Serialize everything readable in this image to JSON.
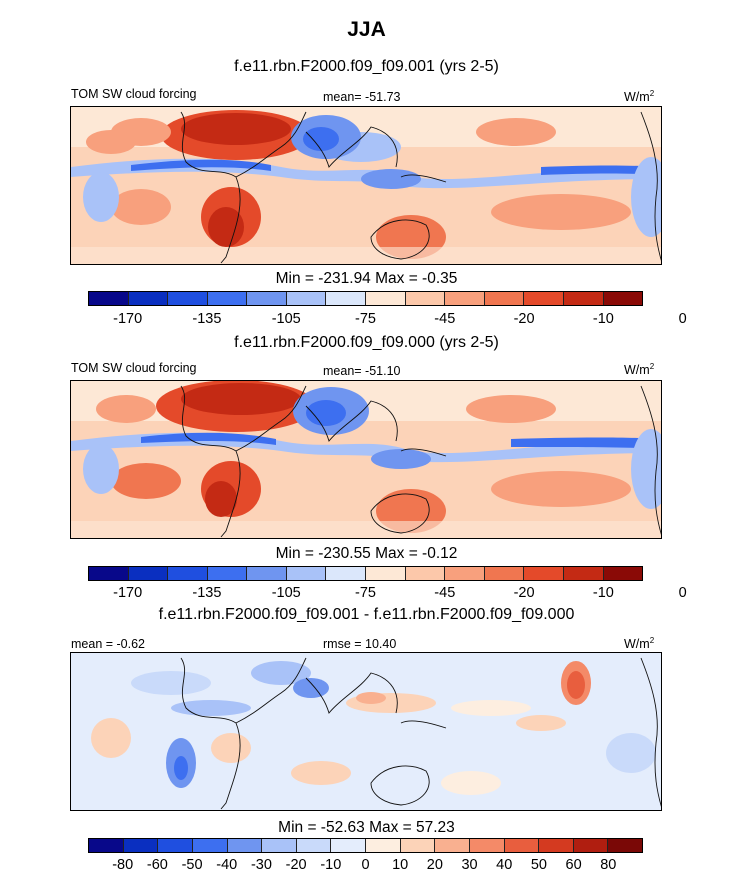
{
  "figure": {
    "title": "JJA"
  },
  "panels": [
    {
      "title": "f.e11.rbn.F2000.f09_f09.001 (yrs 2-5)",
      "left_label": "TOM SW cloud forcing",
      "center_label": "mean= -51.73",
      "unit_label": "W/m",
      "unit_exp": "2",
      "minmax": "Min = -231.94 Max =  -0.35",
      "palette": "abs",
      "colorbar_ticks": [
        "-170",
        "-135",
        "-105",
        "-75",
        "-45",
        "-20",
        "-10",
        "0"
      ]
    },
    {
      "title": "f.e11.rbn.F2000.f09_f09.000 (yrs 2-5)",
      "left_label": "TOM SW cloud forcing",
      "center_label": "mean= -51.10",
      "unit_label": "W/m",
      "unit_exp": "2",
      "minmax": "Min = -230.55 Max =  -0.12",
      "palette": "abs",
      "colorbar_ticks": [
        "-170",
        "-135",
        "-105",
        "-75",
        "-45",
        "-20",
        "-10",
        "0"
      ]
    },
    {
      "title": "f.e11.rbn.F2000.f09_f09.001 - f.e11.rbn.F2000.f09_f09.000",
      "left_label": "mean =  -0.62",
      "center_label": "rmse =  10.40",
      "unit_label": "W/m",
      "unit_exp": "2",
      "minmax": "Min = -52.63 Max =  57.23",
      "palette": "diff",
      "colorbar_ticks": [
        "-80",
        "-60",
        "-50",
        "-40",
        "-30",
        "-20",
        "-10",
        "0",
        "10",
        "20",
        "30",
        "40",
        "50",
        "60",
        "80"
      ]
    }
  ],
  "colors": {
    "abs_palette": [
      "#08088a",
      "#0a2fc0",
      "#1f4fe0",
      "#3d6ff0",
      "#6f95f0",
      "#a9c2f8",
      "#dbe7fb",
      "#fde8d6",
      "#fcc8aa",
      "#f8a07d",
      "#f07650",
      "#e44a2a",
      "#c42a14",
      "#8a0a06"
    ],
    "diff_palette": [
      "#08088a",
      "#0a2fc0",
      "#1f4fe0",
      "#3d6ff0",
      "#6f95f0",
      "#a9c2f8",
      "#c9dafa",
      "#e4edfc",
      "#fdeee0",
      "#fcd3b8",
      "#f9b090",
      "#f48a68",
      "#e85e3e",
      "#d43a20",
      "#b01e10",
      "#7a0806"
    ]
  },
  "chart_data": [
    {
      "type": "heatmap",
      "title": "f.e11.rbn.F2000.f09_f09.001 (yrs 2-5)",
      "variable": "TOM SW cloud forcing",
      "units": "W/m2",
      "mean": -51.73,
      "min": -231.94,
      "max": -0.35,
      "colorbar_levels": [
        -170,
        -135,
        -105,
        -75,
        -45,
        -20,
        -10,
        0
      ]
    },
    {
      "type": "heatmap",
      "title": "f.e11.rbn.F2000.f09_f09.000 (yrs 2-5)",
      "variable": "TOM SW cloud forcing",
      "units": "W/m2",
      "mean": -51.1,
      "min": -230.55,
      "max": -0.12,
      "colorbar_levels": [
        -170,
        -135,
        -105,
        -75,
        -45,
        -20,
        -10,
        0
      ]
    },
    {
      "type": "heatmap",
      "title": "f.e11.rbn.F2000.f09_f09.001 - f.e11.rbn.F2000.f09_f09.000",
      "units": "W/m2",
      "mean": -0.62,
      "rmse": 10.4,
      "min": -52.63,
      "max": 57.23,
      "colorbar_levels": [
        -80,
        -60,
        -50,
        -40,
        -30,
        -20,
        -10,
        0,
        10,
        20,
        30,
        40,
        50,
        60,
        80
      ]
    }
  ]
}
